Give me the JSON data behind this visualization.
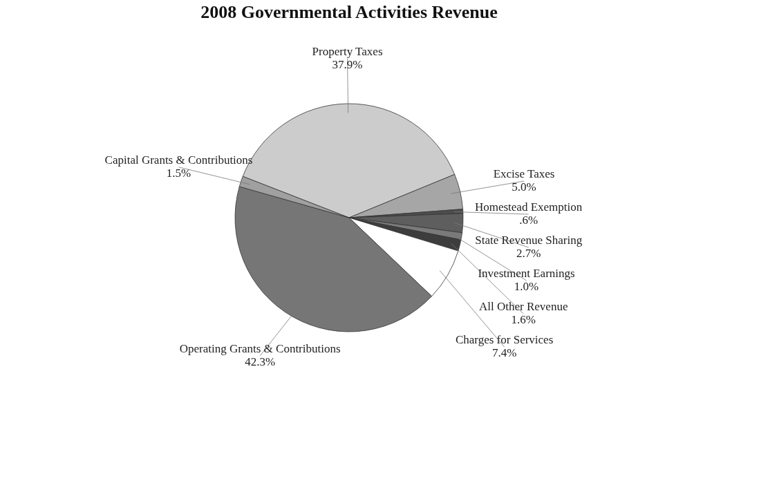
{
  "chart_data": {
    "type": "pie",
    "title": "2008 Governmental Activities Revenue",
    "categories": [
      "Property Taxes",
      "Excise Taxes",
      "Homestead Exemption",
      "State Revenue Sharing",
      "Investment Earnings",
      "All Other Revenue",
      "Charges for Services",
      "Operating Grants & Contributions",
      "Capital Grants & Contributions"
    ],
    "values": [
      37.9,
      5.0,
      0.6,
      2.7,
      1.0,
      1.6,
      7.4,
      42.3,
      1.5
    ],
    "colors": [
      "#cccccc",
      "#a6a6a6",
      "#4d4d4d",
      "#5e5e5e",
      "#7a7a7a",
      "#3d3d3d",
      "#ffffff",
      "#767676",
      "#a0a0a0"
    ],
    "value_labels": [
      "37.9%",
      "5.0%",
      ".6%",
      "2.7%",
      "1.0%",
      "1.6%",
      "7.4%",
      "42.3%",
      "1.5%"
    ]
  }
}
